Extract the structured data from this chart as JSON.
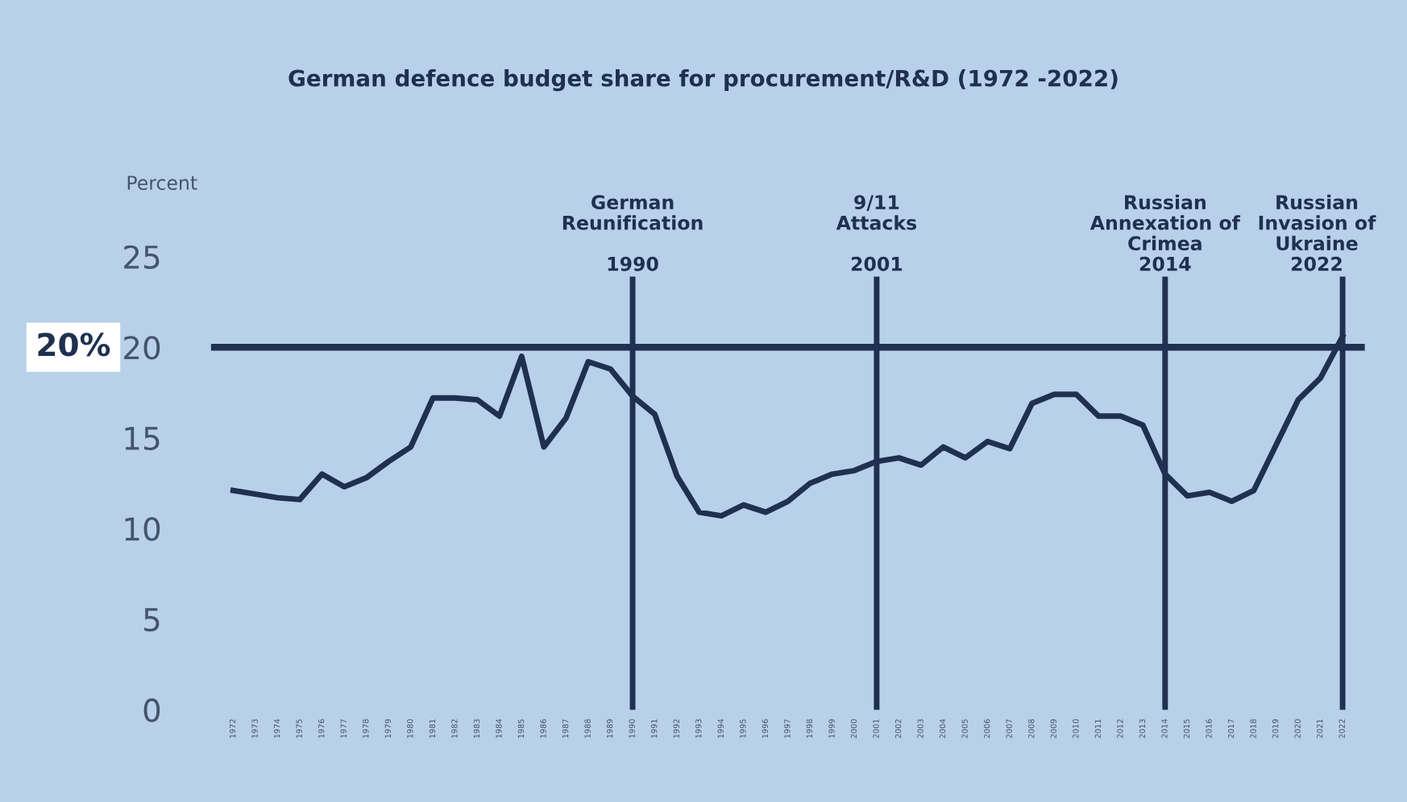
{
  "chart_data": {
    "type": "line",
    "title": "German defence budget share for procurement/R&D (1972 -2022)",
    "ylabel": "Percent",
    "x": [
      1972,
      1973,
      1974,
      1975,
      1976,
      1977,
      1978,
      1979,
      1980,
      1981,
      1982,
      1983,
      1984,
      1985,
      1986,
      1987,
      1988,
      1989,
      1990,
      1991,
      1992,
      1993,
      1994,
      1995,
      1996,
      1997,
      1998,
      1999,
      2000,
      2001,
      2002,
      2003,
      2004,
      2005,
      2006,
      2007,
      2008,
      2009,
      2010,
      2011,
      2012,
      2013,
      2014,
      2015,
      2016,
      2017,
      2018,
      2019,
      2020,
      2021,
      2022
    ],
    "series": [
      {
        "color": "#1f3050",
        "values": [
          12.1,
          11.9,
          11.7,
          11.6,
          13.0,
          12.3,
          12.8,
          13.7,
          14.5,
          17.2,
          17.2,
          17.1,
          16.2,
          19.5,
          14.5,
          16.1,
          19.2,
          18.8,
          17.3,
          16.3,
          12.9,
          10.9,
          10.7,
          11.3,
          10.9,
          11.5,
          12.5,
          13.0,
          13.2,
          13.7,
          13.9,
          13.5,
          14.5,
          13.9,
          14.8,
          14.4,
          16.9,
          17.4,
          17.4,
          16.2,
          16.2,
          15.7,
          13.0,
          11.8,
          12.0,
          11.5,
          12.1,
          14.6,
          17.1,
          18.3,
          20.6
        ]
      }
    ],
    "xlim": [
      1971,
      2023
    ],
    "xticks": [
      1972,
      1973,
      1974,
      1975,
      1976,
      1977,
      1978,
      1979,
      1980,
      1981,
      1982,
      1983,
      1984,
      1985,
      1986,
      1987,
      1988,
      1989,
      1990,
      1991,
      1992,
      1993,
      1994,
      1995,
      1996,
      1997,
      1998,
      1999,
      2000,
      2001,
      2002,
      2003,
      2004,
      2005,
      2006,
      2007,
      2008,
      2009,
      2010,
      2011,
      2012,
      2013,
      2014,
      2015,
      2016,
      2017,
      2018,
      2019,
      2020,
      2021,
      2022
    ],
    "ylim": [
      0,
      25
    ],
    "yticks": [
      0,
      5,
      10,
      15,
      20,
      25
    ],
    "ref_lines": [
      {
        "axis": "y",
        "value": 20,
        "label": "20%",
        "color": "#1f3050"
      },
      {
        "axis": "x",
        "value": 1990,
        "label": "German\nReunification\n\n1990",
        "color": "#1f3050"
      },
      {
        "axis": "x",
        "value": 2001,
        "label": "9/11\nAttacks\n\n2001",
        "color": "#1f3050"
      },
      {
        "axis": "x",
        "value": 2014,
        "label": "Russian\nAnnexation of\nCrimea\n2014",
        "color": "#1f3050"
      },
      {
        "axis": "x",
        "value": 2022,
        "label": "Russian\nInvasion of\nUkraine\n2022",
        "color": "#1f3050"
      }
    ],
    "grid": false,
    "legend": false,
    "marker": "none",
    "line_style": "solid"
  }
}
